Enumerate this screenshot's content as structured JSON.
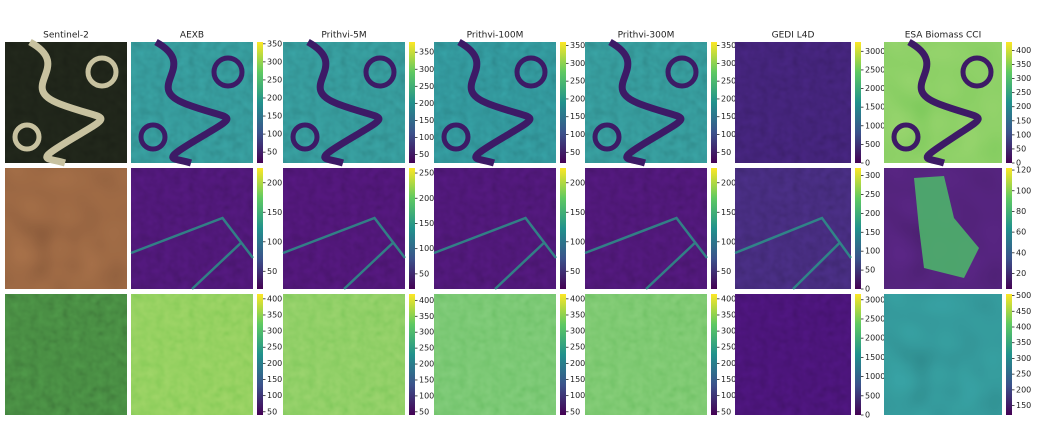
{
  "columns": [
    "Sentinel-2",
    "AEXB",
    "Prithvi-5M",
    "Prithvi-100M",
    "Prithvi-300M",
    "GEDI L4D",
    "ESA Biomass CCI"
  ],
  "rows": [
    {
      "panels": [
        {
          "range": [
            20,
            355
          ],
          "ticks": [
            50,
            100,
            150,
            200,
            250,
            300,
            350
          ]
        },
        {
          "range": [
            25,
            380
          ],
          "ticks": [
            50,
            100,
            150,
            200,
            250,
            300,
            350
          ]
        },
        {
          "range": [
            20,
            360
          ],
          "ticks": [
            50,
            100,
            150,
            200,
            250,
            300,
            350
          ]
        },
        {
          "range": [
            20,
            360
          ],
          "ticks": [
            50,
            100,
            150,
            200,
            250,
            300,
            350
          ]
        },
        {
          "range": [
            0,
            3250
          ],
          "ticks": [
            0,
            500,
            1000,
            1500,
            2000,
            2500,
            3000
          ]
        },
        {
          "range": [
            0,
            430
          ],
          "ticks": [
            0,
            50,
            100,
            150,
            200,
            250,
            300,
            350,
            400
          ]
        }
      ]
    },
    {
      "panels": [
        {
          "range": [
            20,
            225
          ],
          "ticks": [
            50,
            100,
            150,
            200
          ]
        },
        {
          "range": [
            20,
            260
          ],
          "ticks": [
            50,
            100,
            150,
            200,
            250
          ]
        },
        {
          "range": [
            20,
            225
          ],
          "ticks": [
            50,
            100,
            150,
            200
          ]
        },
        {
          "range": [
            20,
            225
          ],
          "ticks": [
            50,
            100,
            150,
            200
          ]
        },
        {
          "range": [
            0,
            320
          ],
          "ticks": [
            0,
            50,
            100,
            150,
            200,
            250,
            300
          ]
        },
        {
          "range": [
            5,
            122
          ],
          "ticks": [
            20,
            40,
            60,
            80,
            100,
            120
          ]
        }
      ]
    },
    {
      "panels": [
        {
          "range": [
            40,
            415
          ],
          "ticks": [
            50,
            100,
            150,
            200,
            250,
            300,
            350,
            400
          ]
        },
        {
          "range": [
            40,
            420
          ],
          "ticks": [
            50,
            100,
            150,
            200,
            250,
            300,
            350,
            400
          ]
        },
        {
          "range": [
            40,
            415
          ],
          "ticks": [
            50,
            100,
            150,
            200,
            250,
            300,
            350,
            400
          ]
        },
        {
          "range": [
            40,
            415
          ],
          "ticks": [
            50,
            100,
            150,
            200,
            250,
            300,
            350,
            400
          ]
        },
        {
          "range": [
            0,
            3150
          ],
          "ticks": [
            0,
            500,
            1000,
            1500,
            2000,
            2500,
            3000
          ]
        },
        {
          "range": [
            120,
            505
          ],
          "ticks": [
            150,
            200,
            250,
            300,
            350,
            400,
            450,
            500
          ]
        }
      ]
    }
  ]
}
